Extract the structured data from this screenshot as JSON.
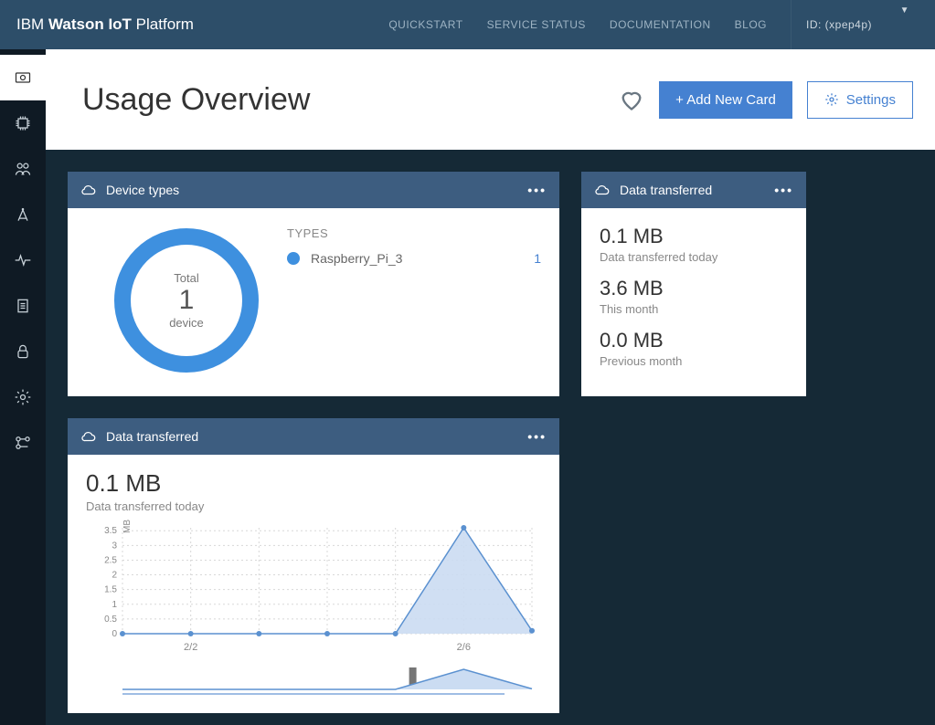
{
  "brand": {
    "part1": "IBM",
    "part2": "Watson IoT",
    "part3": "Platform"
  },
  "topnav": {
    "quickstart": "QUICKSTART",
    "servicestatus": "SERVICE STATUS",
    "documentation": "DOCUMENTATION",
    "blog": "BLOG"
  },
  "idbox": {
    "label": "ID: (xpep4p)"
  },
  "page": {
    "title": "Usage Overview",
    "add_card": "+ Add New Card",
    "settings": "Settings"
  },
  "colors": {
    "topbar": "#2d4e69",
    "sidebar": "#0f1a24",
    "body_bg": "#152936",
    "card_head": "#3d5d80",
    "primary_btn": "#4581d1",
    "donut": "#3e90df",
    "chart_line": "#5b91d0",
    "chart_fill": "#cbdcf2",
    "grid": "#d8d8d8",
    "marker": "#5b91d0"
  },
  "device_types_card": {
    "title": "Device types",
    "donut": {
      "total_label": "Total",
      "count": "1",
      "unit": "device"
    },
    "types_header": "TYPES",
    "types": [
      {
        "color": "#3e90df",
        "name": "Raspberry_Pi_3",
        "count": "1"
      }
    ]
  },
  "data_transferred_small": {
    "title": "Data transferred",
    "items": [
      {
        "value": "0.1 MB",
        "label": "Data transferred today"
      },
      {
        "value": "3.6 MB",
        "label": "This month"
      },
      {
        "value": "0.0 MB",
        "label": "Previous month"
      }
    ]
  },
  "data_transferred_chart": {
    "title": "Data transferred",
    "value": "0.1 MB",
    "label": "Data transferred today",
    "chart": {
      "type": "area",
      "y_unit": "MB",
      "ylim": [
        0,
        3.6
      ],
      "yticks": [
        0,
        0.5,
        1,
        1.5,
        2,
        2.5,
        3,
        3.5
      ],
      "x_labels": [
        "",
        "2/2",
        "",
        "",
        "",
        "2/6",
        ""
      ],
      "values": [
        0,
        0,
        0,
        0,
        0,
        3.6,
        0.1
      ],
      "line_color": "#5b91d0",
      "fill_color": "#cbdcf2",
      "grid_color": "#d8d8d8",
      "marker_color": "#5b91d0",
      "marker_radius": 3,
      "line_width": 1.5,
      "background": "#ffffff"
    },
    "mini": {
      "values": [
        0,
        0,
        0,
        0,
        0,
        3.6,
        0.1
      ],
      "line_color": "#5b91d0",
      "fill_color": "#cbdcf2",
      "handle_color": "#767676"
    }
  }
}
